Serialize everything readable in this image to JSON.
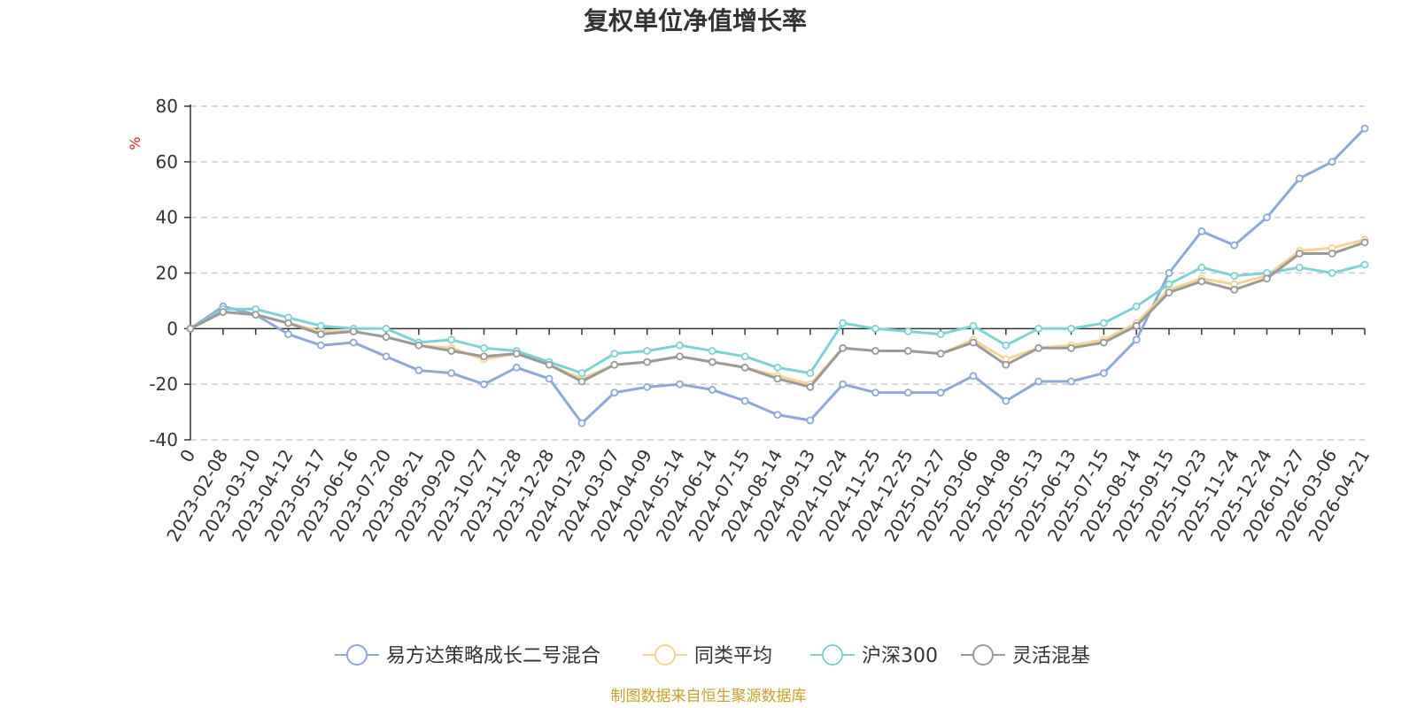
{
  "chart_data": {
    "type": "line",
    "title": "复权单位净值增长率",
    "ylabel": "%",
    "ylim": [
      -40,
      80
    ],
    "yticks": [
      80,
      60,
      40,
      20,
      0,
      -20,
      -40
    ],
    "grid": true,
    "legend_position": "bottom",
    "source": "制图数据来自恒生聚源数据库",
    "x": [
      "0",
      "2023-02-08",
      "2023-03-10",
      "2023-04-12",
      "2023-05-17",
      "2023-06-16",
      "2023-07-20",
      "2023-08-21",
      "2023-09-20",
      "2023-10-27",
      "2023-11-28",
      "2023-12-28",
      "2024-01-29",
      "2024-03-07",
      "2024-04-09",
      "2024-05-14",
      "2024-06-14",
      "2024-07-15",
      "2024-08-14",
      "2024-09-13",
      "2024-10-24",
      "2024-11-25",
      "2024-12-25",
      "2025-01-27",
      "2025-03-06",
      "2025-04-08",
      "2025-05-13",
      "2025-06-13",
      "2025-07-15",
      "2025-08-14",
      "2025-09-15",
      "2025-10-23",
      "2025-11-24",
      "2025-12-24",
      "2026-01-27",
      "2026-03-06",
      "2026-04-21"
    ],
    "series": [
      {
        "name": "易方达策略成长二号混合",
        "color": "#8ea8d8",
        "values": [
          0,
          8,
          5,
          -2,
          -6,
          -5,
          -10,
          -15,
          -16,
          -20,
          -14,
          -18,
          -34,
          -23,
          -21,
          -20,
          -22,
          -26,
          -31,
          -33,
          -20,
          -23,
          -23,
          -23,
          -17,
          -26,
          -19,
          -19,
          -16,
          -4,
          20,
          35,
          30,
          40,
          54,
          60,
          72
        ]
      },
      {
        "name": "同类平均",
        "color": "#f5d48f",
        "values": [
          0,
          6,
          5,
          2,
          -1,
          -1,
          -3,
          -6,
          -7,
          -11,
          -9,
          -13,
          -18,
          -13,
          -12,
          -10,
          -12,
          -14,
          -17,
          -20,
          -7,
          -8,
          -8,
          -9,
          -4,
          -11,
          -7,
          -6,
          -4,
          2,
          14,
          18,
          16,
          19,
          28,
          29,
          32
        ]
      },
      {
        "name": "沪深300",
        "color": "#7ed2d4",
        "values": [
          0,
          7,
          7,
          4,
          1,
          0,
          0,
          -5,
          -4,
          -7,
          -8,
          -12,
          -16,
          -9,
          -8,
          -6,
          -8,
          -10,
          -14,
          -16,
          2,
          0,
          -1,
          -2,
          1,
          -6,
          0,
          0,
          2,
          8,
          16,
          22,
          19,
          20,
          22,
          20,
          23
        ]
      },
      {
        "name": "灵活混基",
        "color": "#9a9a9a",
        "values": [
          0,
          6,
          5,
          2,
          -2,
          -1,
          -3,
          -6,
          -8,
          -10,
          -9,
          -13,
          -19,
          -13,
          -12,
          -10,
          -12,
          -14,
          -18,
          -21,
          -7,
          -8,
          -8,
          -9,
          -5,
          -13,
          -7,
          -7,
          -5,
          1,
          13,
          17,
          14,
          18,
          27,
          27,
          31
        ]
      }
    ]
  }
}
